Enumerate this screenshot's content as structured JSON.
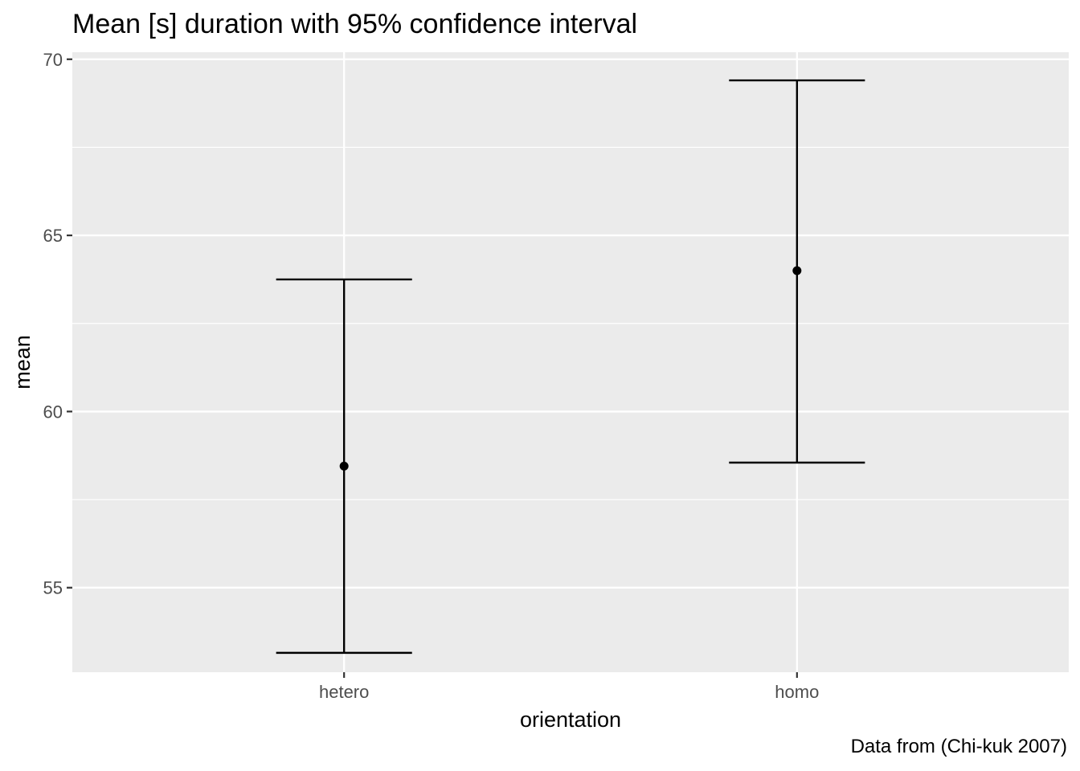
{
  "chart_data": {
    "type": "errorbar",
    "title": "Mean [s] duration with 95% confidence interval",
    "xlabel": "orientation",
    "ylabel": "mean",
    "caption": "Data from (Chi-kuk 2007)",
    "categories": [
      "hetero",
      "homo"
    ],
    "mean": [
      58.45,
      64.0
    ],
    "lower": [
      53.15,
      58.55
    ],
    "upper": [
      63.75,
      69.4
    ],
    "ylim": [
      52.6,
      70.2
    ],
    "yticks": [
      55,
      60,
      65,
      70
    ],
    "grid": true,
    "colors": {
      "panel_background": "#ebebeb",
      "grid": "#ffffff",
      "marks": "#000000",
      "tick_label": "#4d4d4d"
    }
  }
}
